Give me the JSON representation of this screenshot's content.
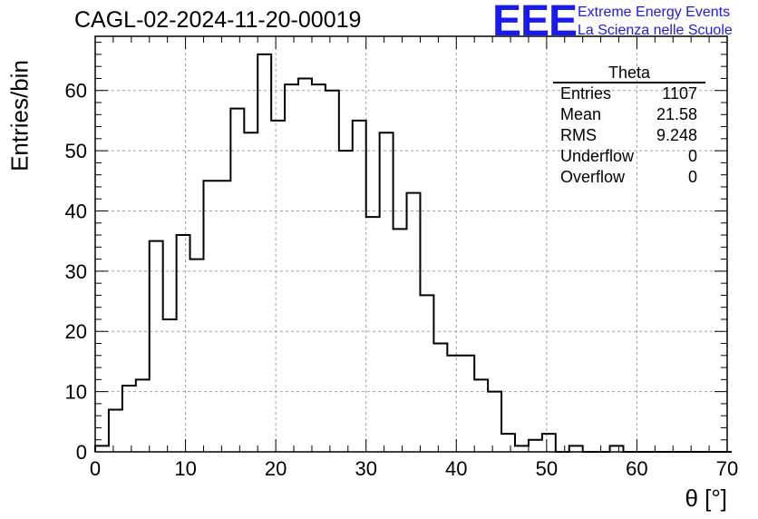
{
  "title": "CAGL-02-2024-11-20-00019",
  "logo": {
    "mark": "EEE",
    "line1": "Extreme Energy Events",
    "line2": "La Scienza nelle Scuole",
    "color": "#1a1aee"
  },
  "chart_data": {
    "type": "bar",
    "style": "step-histogram",
    "xlabel": "θ [°]",
    "ylabel": "Entries/bin",
    "xlim": [
      0,
      70
    ],
    "ylim": [
      0,
      69
    ],
    "xticks": [
      0,
      10,
      20,
      30,
      40,
      50,
      60,
      70
    ],
    "yticks": [
      0,
      10,
      20,
      30,
      40,
      50,
      60
    ],
    "grid": true,
    "bin_width": 1.5,
    "bin_start": 0,
    "values": [
      1,
      7,
      11,
      12,
      35,
      22,
      36,
      32,
      45,
      45,
      57,
      53,
      66,
      55,
      61,
      62,
      61,
      60,
      50,
      55,
      39,
      53,
      37,
      43,
      26,
      18,
      16,
      16,
      12,
      10,
      3,
      1,
      2,
      3,
      0,
      1,
      0,
      0,
      1,
      0,
      0,
      0,
      0,
      0,
      0,
      0,
      0
    ],
    "legend": {
      "title": "Theta",
      "position": "top-right",
      "rows": [
        {
          "label": "Entries",
          "value": "1107"
        },
        {
          "label": "Mean",
          "value": "21.58"
        },
        {
          "label": "RMS",
          "value": "9.248"
        },
        {
          "label": "Underflow",
          "value": "0"
        },
        {
          "label": "Overflow",
          "value": "0"
        }
      ]
    }
  }
}
